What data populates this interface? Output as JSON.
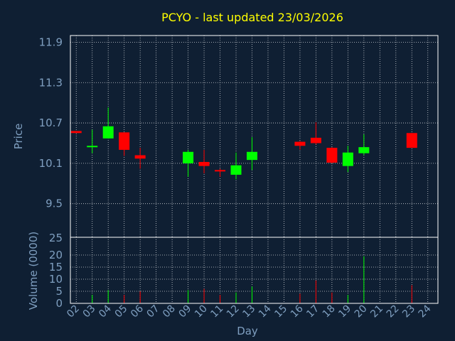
{
  "colors": {
    "background": "#0f1f33",
    "title": "#ffff00",
    "axis_text": "#7f9fc0",
    "frame": "#ffffff",
    "grid": "#ffffff",
    "up": "#00ff00",
    "down": "#ff0000"
  },
  "chart_data": {
    "type": "candlestick",
    "title": "PCYO - last updated 23/03/2026",
    "xlabel": "Day",
    "price_panel": {
      "ylabel": "Price",
      "ylim": [
        9.0,
        12.0
      ],
      "yticks": [
        "9.5",
        "10.1",
        "10.7",
        "11.3",
        "11.9"
      ],
      "grid": true
    },
    "volume_panel": {
      "ylabel": "Volume (0000)",
      "ylim": [
        0,
        25
      ],
      "yticks": [
        "0",
        "5",
        "10",
        "15",
        "20",
        "25"
      ]
    },
    "x_tick_labels": [
      "02",
      "03",
      "04",
      "05",
      "06",
      "07",
      "08",
      "09",
      "10",
      "11",
      "12",
      "13",
      "14",
      "15",
      "16",
      "17",
      "18",
      "19",
      "20",
      "21",
      "22",
      "23",
      "24"
    ],
    "candles": [
      {
        "day": "02",
        "open": 10.58,
        "high": 10.58,
        "low": 10.55,
        "close": 10.55,
        "volume": 0
      },
      {
        "day": "03",
        "open": 10.35,
        "high": 10.6,
        "low": 10.25,
        "close": 10.36,
        "volume": 3.5
      },
      {
        "day": "04",
        "open": 10.47,
        "high": 10.93,
        "low": 10.47,
        "close": 10.65,
        "volume": 5.5
      },
      {
        "day": "05",
        "open": 10.56,
        "high": 10.56,
        "low": 10.21,
        "close": 10.3,
        "volume": 3.5
      },
      {
        "day": "06",
        "open": 10.22,
        "high": 10.33,
        "low": 10.02,
        "close": 10.17,
        "volume": 5.0
      },
      {
        "day": "09",
        "open": 10.1,
        "high": 10.3,
        "low": 9.9,
        "close": 10.27,
        "volume": 5.5
      },
      {
        "day": "10",
        "open": 10.12,
        "high": 10.3,
        "low": 9.95,
        "close": 10.06,
        "volume": 6.0
      },
      {
        "day": "11",
        "open": 10.0,
        "high": 10.02,
        "low": 9.9,
        "close": 9.98,
        "volume": 3.5
      },
      {
        "day": "12",
        "open": 9.93,
        "high": 10.26,
        "low": 9.86,
        "close": 10.07,
        "volume": 4.5
      },
      {
        "day": "13",
        "open": 10.15,
        "high": 10.49,
        "low": 10.0,
        "close": 10.27,
        "volume": 7.0
      },
      {
        "day": "16",
        "open": 10.42,
        "high": 10.43,
        "low": 10.3,
        "close": 10.36,
        "volume": 4.0
      },
      {
        "day": "17",
        "open": 10.48,
        "high": 10.71,
        "low": 10.38,
        "close": 10.4,
        "volume": 9.5
      },
      {
        "day": "18",
        "open": 10.33,
        "high": 10.34,
        "low": 10.1,
        "close": 10.11,
        "volume": 4.5
      },
      {
        "day": "19",
        "open": 10.06,
        "high": 10.36,
        "low": 9.97,
        "close": 10.26,
        "volume": 3.5
      },
      {
        "day": "20",
        "open": 10.25,
        "high": 10.53,
        "low": 10.22,
        "close": 10.34,
        "volume": 19.5
      },
      {
        "day": "23",
        "open": 10.55,
        "high": 10.55,
        "low": 10.33,
        "close": 10.33,
        "volume": 7.5
      }
    ]
  }
}
